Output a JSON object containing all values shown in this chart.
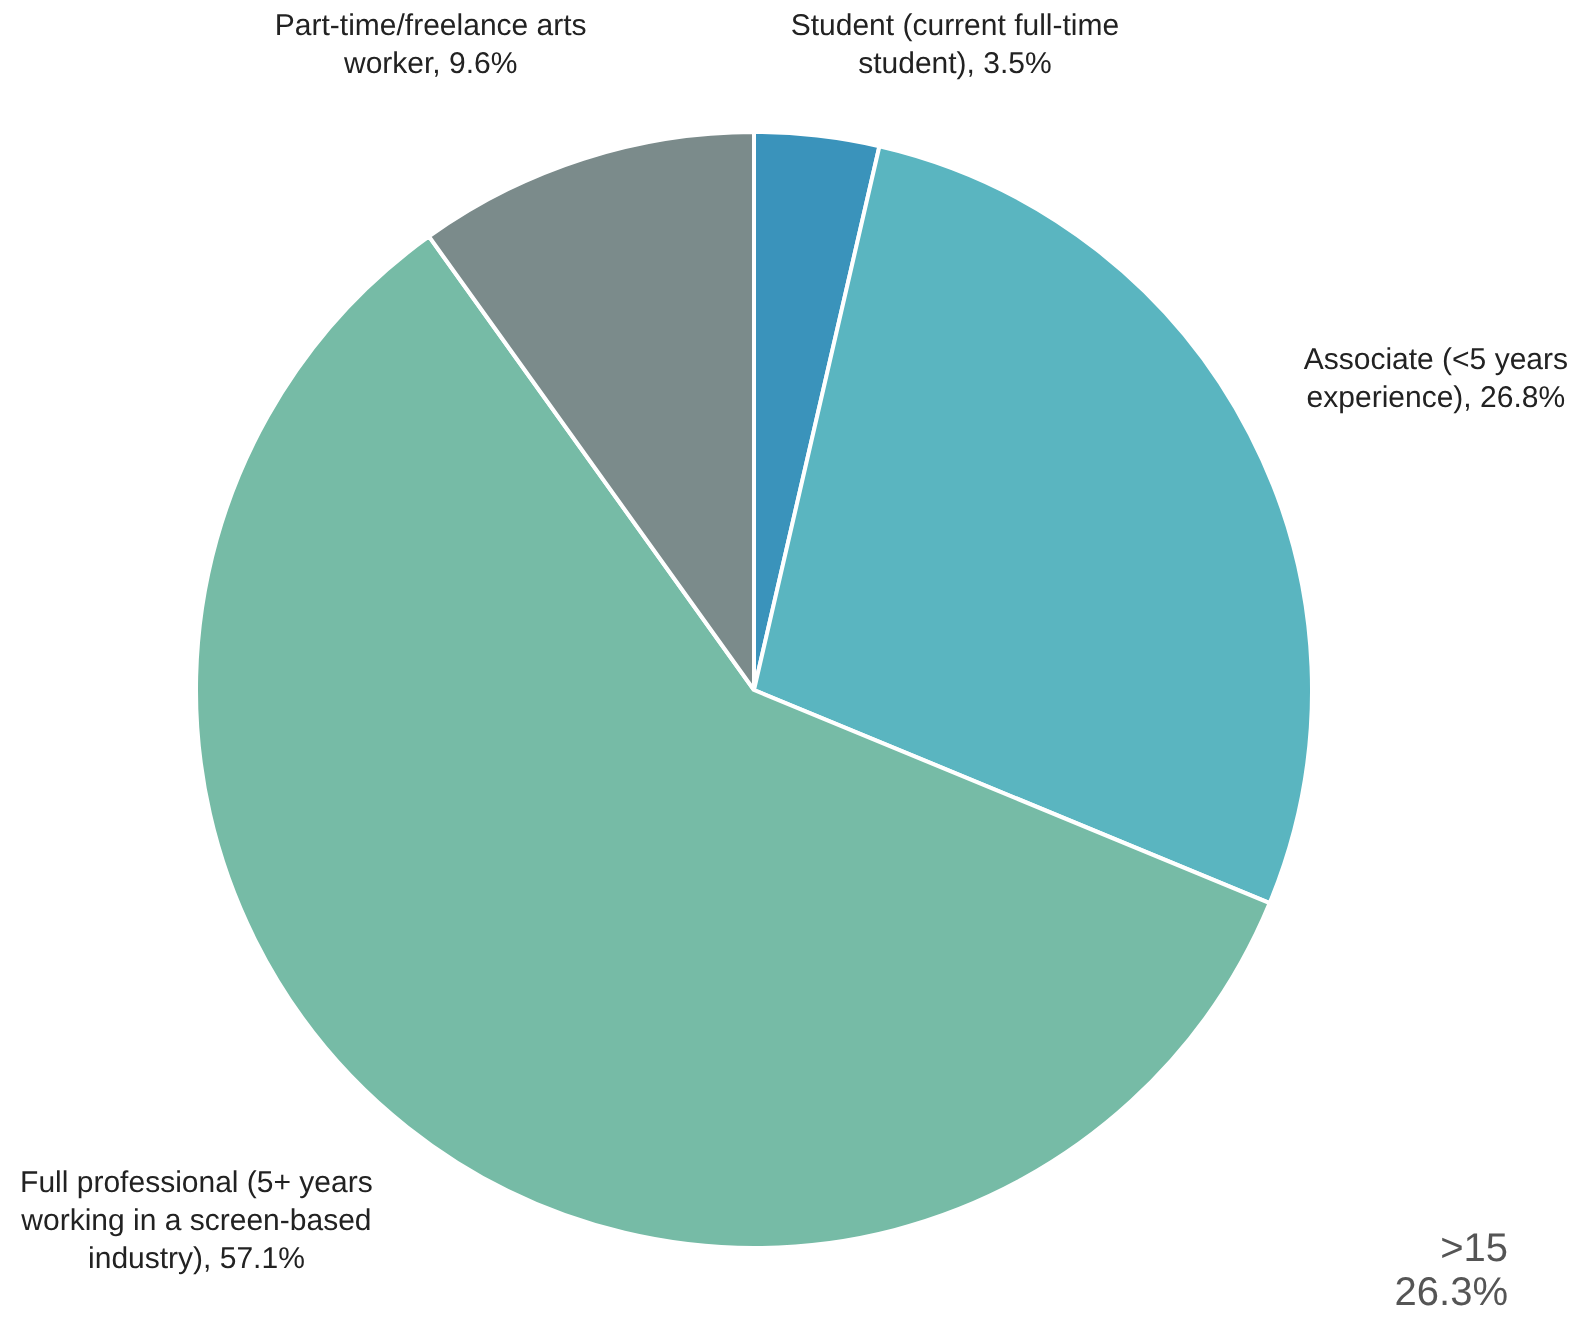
{
  "chart_data": {
    "type": "pie",
    "categories": [
      "Student (current full-time student)",
      "Associate (<5 years experience)",
      "Full professional (5+ years working in a screen-based industry)",
      "Part-time/freelance arts worker"
    ],
    "values": [
      3.5,
      26.8,
      57.1,
      9.6
    ],
    "colors": [
      "#3a93bb",
      "#5ab5c0",
      "#76bba6",
      "#7b8b8b"
    ],
    "value_labels": [
      "3.5%",
      "26.8%",
      "57.1%",
      "9.6%"
    ],
    "legend": false,
    "annotations": [
      ">15",
      "26.3%"
    ]
  }
}
